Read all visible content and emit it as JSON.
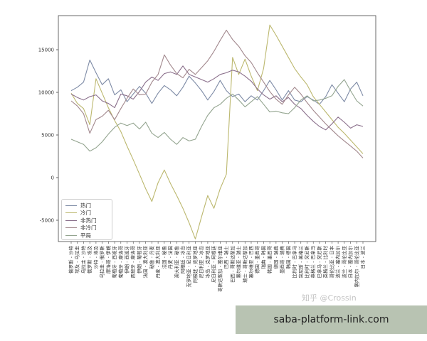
{
  "chart_data": {
    "type": "line",
    "categories": [
      "俄罗斯 - 沙特",
      "埃及 - 乌拉圭",
      "乌拉圭 - 沙特",
      "俄罗斯 - 埃及",
      "沙特 - 埃及",
      "乌拉圭 - 俄罗斯",
      "摩洛哥 - 伊朗",
      "葡萄牙 - 西班牙",
      "葡萄牙 - 摩洛哥",
      "伊朗 - 西班牙",
      "西班牙 - 摩洛哥",
      "伊朗 - 葡萄牙",
      "法国 - 澳大利亚",
      "秘鲁 - 丹麦",
      "丹麦 - 澳大利亚",
      "法国 - 秘鲁",
      "丹麦 - 法国",
      "澳大利亚 - 秘鲁",
      "阿根廷 - 冰岛",
      "克罗地亚 - 尼日利亚",
      "阿根廷 - 克罗地亚",
      "尼日利亚 - 冰岛",
      "冰岛 - 克罗地亚",
      "尼日利亚 - 阿根廷",
      "哥斯达黎加 - 塞尔维亚",
      "巴西 - 瑞士",
      "巴西 - 哥斯达黎加",
      "塞尔维亚 - 瑞士",
      "瑞士 - 哥斯达黎加",
      "塞尔维亚 - 巴西",
      "德国 - 墨西哥",
      "瑞典 - 韩国",
      "韩国 - 墨西哥",
      "德国 - 瑞典",
      "墨西哥 - 瑞典",
      "韩国 - 德国",
      "比利时 - 巴拿马",
      "突尼斯 - 英格兰",
      "比利时 - 突尼斯",
      "英格兰 - 巴拿马",
      "巴拿马 - 突尼斯",
      "英格兰 - 比利时",
      "哥伦比亚 - 日本",
      "波兰 - 塞内加尔",
      "波兰 - 哥伦比亚",
      "日本 - 塞内加尔",
      "塞内加尔 - 哥伦比亚",
      "日本 - 波兰"
    ],
    "series": [
      {
        "name": "热门",
        "color": "#7e8ba6",
        "values": [
          10200,
          10600,
          11200,
          13800,
          12300,
          10900,
          11600,
          9700,
          10300,
          8900,
          9800,
          10700,
          9900,
          8700,
          9900,
          10800,
          10300,
          9600,
          10600,
          11900,
          11100,
          10200,
          9100,
          10100,
          11400,
          10200,
          9500,
          9800,
          8900,
          9600,
          9100,
          10200,
          11400,
          10300,
          9100,
          10200,
          9100,
          8900,
          9500,
          9100,
          8600,
          9500,
          10900,
          9900,
          8900,
          10400,
          11200,
          9600
        ]
      },
      {
        "name": "冷门",
        "color": "#bcb86f",
        "values": [
          9900,
          8700,
          8100,
          6200,
          11600,
          9900,
          8200,
          6700,
          5400,
          3700,
          2100,
          400,
          -1300,
          -2800,
          -600,
          900,
          -700,
          -2100,
          -3600,
          -5300,
          -7200,
          -4600,
          -2100,
          -3600,
          -1300,
          400,
          14100,
          12100,
          13900,
          11900,
          10200,
          12800,
          17900,
          16700,
          15400,
          14100,
          12800,
          11800,
          10900,
          9500,
          8600,
          7700,
          6800,
          5900,
          5200,
          4400,
          3600,
          2800
        ]
      },
      {
        "name": "非热门",
        "color": "#8a6f8b",
        "values": [
          9800,
          9400,
          9100,
          9500,
          9700,
          9000,
          8700,
          8200,
          9800,
          9600,
          9200,
          10100,
          11200,
          11800,
          11400,
          12200,
          12400,
          12100,
          13100,
          12100,
          11800,
          11500,
          11200,
          11600,
          12100,
          12300,
          12600,
          12400,
          11900,
          11300,
          10400,
          9700,
          9200,
          9600,
          8900,
          9400,
          8600,
          8100,
          7300,
          6600,
          6000,
          5600,
          6300,
          7100,
          6500,
          5800,
          6200,
          6000
        ]
      },
      {
        "name": "非冷门",
        "color": "#a2888d",
        "values": [
          9000,
          8400,
          7500,
          5200,
          6800,
          7200,
          7900,
          6800,
          8100,
          9300,
          10400,
          9700,
          9800,
          11200,
          12100,
          14400,
          13200,
          12200,
          11700,
          12700,
          12100,
          12900,
          13700,
          14800,
          16100,
          17300,
          16200,
          15400,
          14300,
          13500,
          12300,
          11200,
          10100,
          9200,
          8600,
          9700,
          10600,
          9800,
          8800,
          7900,
          7100,
          6300,
          5600,
          4900,
          4300,
          3700,
          3100,
          2300
        ]
      },
      {
        "name": "平局",
        "color": "#93a48f",
        "values": [
          4500,
          4200,
          3900,
          3100,
          3500,
          4200,
          5100,
          5900,
          6400,
          6100,
          6400,
          5700,
          6500,
          5200,
          4700,
          5300,
          4500,
          3900,
          4700,
          4300,
          4500,
          6000,
          7300,
          8200,
          8600,
          9300,
          9800,
          9100,
          8300,
          8900,
          9500,
          8600,
          7700,
          7800,
          7600,
          7500,
          8200,
          9100,
          9600,
          9000,
          9100,
          9300,
          9600,
          10700,
          11500,
          10200,
          9000,
          8400
        ]
      }
    ],
    "ylim": [
      -7500,
      19000
    ],
    "yticks": [
      "-5000",
      "0",
      "5000",
      "10000",
      "15000"
    ],
    "ytick_values": [
      -5000,
      0,
      5000,
      10000,
      15000
    ],
    "grid": false,
    "legend_position": "lower-left"
  },
  "watermark": "知乎 @Crossin",
  "banner": {
    "text": "saba-platform-link.com",
    "color": "#b8c3b2"
  }
}
